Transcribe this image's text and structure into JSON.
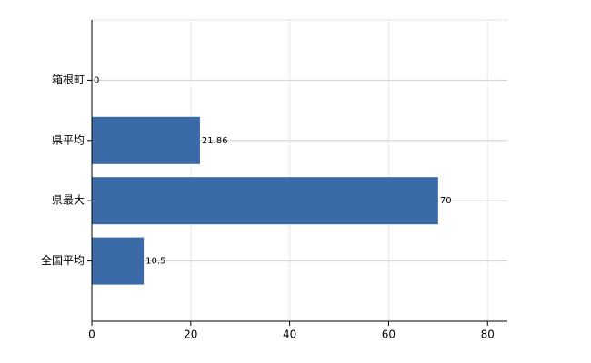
{
  "chart_data": {
    "type": "bar",
    "orientation": "horizontal",
    "categories": [
      "箱根町",
      "県平均",
      "県最大",
      "全国平均"
    ],
    "values": [
      0,
      21.86,
      70,
      10.5
    ],
    "color": "#3a6aa8",
    "xlim": [
      0,
      84
    ],
    "xticks": [
      0,
      20,
      40,
      60,
      80
    ],
    "grid": true
  }
}
